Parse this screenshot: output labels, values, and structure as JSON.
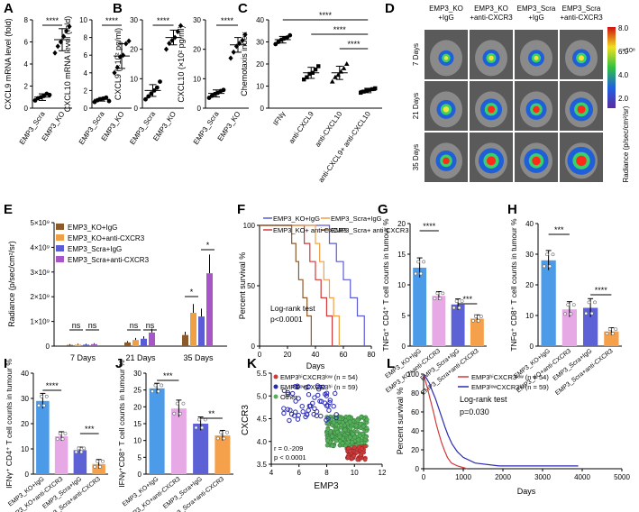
{
  "colors": {
    "blue": "#5B5BD6",
    "orange": "#F0A044",
    "purple": "#A855C8",
    "brown": "#8B5A2B",
    "red": "#D13A3A",
    "blue_bar": "#4B9BE8",
    "pink": "#E7A8E6",
    "indigo": "#5C62D6",
    "orange_bar": "#F5A04B",
    "green": "#55B05A"
  },
  "panel_letters": [
    "A",
    "B",
    "C",
    "D",
    "E",
    "F",
    "G",
    "H",
    "I",
    "J",
    "K",
    "L"
  ],
  "chart_data": [
    {
      "panel": "A",
      "type": "scatter",
      "ylabel": "CXCL9 mRNA level (fold)",
      "categories": [
        "EMP3_Scra",
        "EMP3_KO"
      ],
      "yticks": [
        "0",
        "2",
        "4",
        "6",
        "8"
      ],
      "ylim": [
        0,
        8
      ],
      "means": [
        1.0,
        6.2
      ],
      "sd": [
        0.3,
        1.0
      ],
      "points": [
        [
          0.7,
          0.9,
          1.0,
          1.1,
          1.3,
          1.2
        ],
        [
          5.0,
          5.6,
          6.0,
          6.5,
          7.0,
          7.4
        ]
      ],
      "significance": "****"
    },
    {
      "panel": "A2",
      "type": "scatter",
      "ylabel": "CXCL10 mRNA level (fold)",
      "categories": [
        "EMP3_Scra",
        "EMP3_KO"
      ],
      "yticks": [
        "0",
        "2",
        "4",
        "6",
        "8",
        "10"
      ],
      "ylim": [
        0,
        10
      ],
      "means": [
        1.0,
        5.9
      ],
      "sd": [
        0.2,
        1.4
      ],
      "points": [
        [
          0.7,
          0.9,
          1.0,
          1.1,
          1.2,
          0.8
        ],
        [
          4.0,
          4.6,
          5.8,
          6.0,
          7.3,
          7.6
        ]
      ],
      "significance": "****"
    },
    {
      "panel": "B",
      "type": "scatter",
      "ylabel": "CXCL9 (×10² pg/ml)",
      "categories": [
        "EMP3_Scra",
        "EMP3_KO"
      ],
      "yticks": [
        "0",
        "10",
        "20",
        "30"
      ],
      "ylim": [
        0,
        30
      ],
      "means": [
        6.0,
        24.0
      ],
      "sd": [
        2.0,
        2.5
      ],
      "points": [
        [
          3,
          4,
          5,
          6,
          7,
          9
        ],
        [
          20,
          22,
          23,
          24,
          26,
          28
        ]
      ],
      "significance": "****"
    },
    {
      "panel": "B2",
      "type": "scatter",
      "ylabel": "CXCL10 (×10² pg/ml)",
      "categories": [
        "EMP3_Scra",
        "EMP3_KO"
      ],
      "yticks": [
        "0",
        "10",
        "20",
        "30"
      ],
      "ylim": [
        0,
        30
      ],
      "means": [
        5.0,
        21.5
      ],
      "sd": [
        1.2,
        2.5
      ],
      "points": [
        [
          3.5,
          4.2,
          4.8,
          5.2,
          5.8,
          6.2
        ],
        [
          17,
          19,
          21,
          22,
          23,
          25
        ]
      ],
      "significance": "****"
    },
    {
      "panel": "C",
      "type": "scatter",
      "ylabel": "Chemotaxis index",
      "categories": [
        "IFNγ",
        "anti-CXCL9",
        "anti-CXCL10",
        "anti-CXCL9+ anti-CXCL10"
      ],
      "yticks": [
        "0",
        "10",
        "20",
        "30",
        "40"
      ],
      "ylim": [
        0,
        40
      ],
      "means": [
        31,
        16,
        16,
        8
      ],
      "sd": [
        1.5,
        2.5,
        3.0,
        1.0
      ],
      "points": [
        [
          29,
          30,
          31,
          31.5,
          32,
          33
        ],
        [
          13,
          14,
          15.5,
          16,
          17.5,
          19
        ],
        [
          12,
          14,
          15,
          16.5,
          18,
          20
        ],
        [
          7,
          7.5,
          8,
          8.3,
          8.6,
          9
        ]
      ],
      "significance": [
        "****",
        "****",
        "****"
      ]
    },
    {
      "panel": "D",
      "type": "heatmap",
      "rows": [
        "7 Days",
        "21 Days",
        "35 Days"
      ],
      "columns": [
        "EMP3_KO +IgG",
        "EMP3_KO +anti-CXCR3",
        "EMP3_Scra +IgG",
        "EMP3_Scra +anti-CXCR3"
      ],
      "colorbar_ticks": [
        "8.0",
        "6.0",
        "4.0",
        "2.0"
      ],
      "colorbar_unit": "×10⁸",
      "colorbar_label": "Radiance (p/sec/cm²/sr)",
      "intensity": [
        [
          0.25,
          0.35,
          0.3,
          0.4
        ],
        [
          0.45,
          0.6,
          0.55,
          0.7
        ],
        [
          0.55,
          0.8,
          0.75,
          0.95
        ]
      ]
    },
    {
      "panel": "E",
      "type": "bar",
      "ylabel": "Radiance (p/sec/cm²/sr)",
      "categories": [
        "7 Days",
        "21 Days",
        "35 Days"
      ],
      "yticks": [
        "0",
        "1×10⁹",
        "2×10⁹",
        "3×10⁹",
        "4×10⁹",
        "5×10⁹"
      ],
      "ylim": [
        0,
        5
      ],
      "series": [
        {
          "name": "EMP3_KO+IgG",
          "values": [
            0.05,
            0.15,
            0.45
          ]
        },
        {
          "name": "EMP3_KO+anti-CXCR3",
          "values": [
            0.06,
            0.25,
            1.35
          ]
        },
        {
          "name": "EMP3_Scra+IgG",
          "values": [
            0.06,
            0.3,
            1.2
          ]
        },
        {
          "name": "EMP3_Scra+anti-CXCR3",
          "values": [
            0.08,
            0.55,
            2.95
          ]
        }
      ],
      "significance": [
        "ns",
        "ns",
        "ns",
        "ns",
        "*",
        "*"
      ]
    },
    {
      "panel": "F",
      "type": "line",
      "ylabel": "Percent survival %",
      "xlabel": "Days",
      "xlim": [
        0,
        80
      ],
      "ylim": [
        0,
        100
      ],
      "xticks": [
        "0",
        "20",
        "40",
        "60",
        "80"
      ],
      "yticks": [
        "0",
        "50",
        "100"
      ],
      "series": [
        {
          "name": "EMP3_KO+IgG",
          "points": [
            [
              0,
              100
            ],
            [
              50,
              100
            ],
            [
              50,
              85
            ],
            [
              55,
              85
            ],
            [
              55,
              70
            ],
            [
              60,
              70
            ],
            [
              60,
              55
            ],
            [
              65,
              55
            ],
            [
              65,
              40
            ],
            [
              70,
              40
            ],
            [
              70,
              25
            ],
            [
              75,
              25
            ],
            [
              75,
              0
            ]
          ]
        },
        {
          "name": "EMP3_KO+ anti-CXCR3",
          "points": [
            [
              0,
              100
            ],
            [
              32,
              100
            ],
            [
              32,
              85
            ],
            [
              36,
              85
            ],
            [
              36,
              70
            ],
            [
              40,
              70
            ],
            [
              40,
              55
            ],
            [
              44,
              55
            ],
            [
              44,
              40
            ],
            [
              48,
              40
            ],
            [
              48,
              25
            ],
            [
              52,
              25
            ],
            [
              52,
              0
            ]
          ]
        },
        {
          "name": "EMP3_Scra+IgG",
          "points": [
            [
              0,
              100
            ],
            [
              40,
              100
            ],
            [
              40,
              85
            ],
            [
              43,
              85
            ],
            [
              43,
              70
            ],
            [
              46,
              70
            ],
            [
              46,
              55
            ],
            [
              50,
              55
            ],
            [
              50,
              40
            ],
            [
              53,
              40
            ],
            [
              53,
              25
            ],
            [
              57,
              25
            ],
            [
              57,
              0
            ]
          ]
        },
        {
          "name": "EMP3_Scra+ anti-CXCR3",
          "points": [
            [
              0,
              100
            ],
            [
              23,
              100
            ],
            [
              23,
              85
            ],
            [
              26,
              85
            ],
            [
              26,
              70
            ],
            [
              28,
              70
            ],
            [
              28,
              55
            ],
            [
              31,
              55
            ],
            [
              31,
              40
            ],
            [
              34,
              40
            ],
            [
              34,
              25
            ],
            [
              37,
              25
            ],
            [
              37,
              0
            ]
          ]
        }
      ],
      "annotation": [
        "Log-rank test",
        "p<0.0001"
      ]
    },
    {
      "panel": "G",
      "type": "bar",
      "ylabel": "TNFα⁺ CD4⁺ T cell counts in tumour %",
      "categories": [
        "EMP3_KO+IgG",
        "EMP3_KO+anti-CXCR3",
        "EMP3_Scra+IgG",
        "EMP3_Scra+anti-CXCR3"
      ],
      "yticks": [
        "0",
        "5",
        "10",
        "15",
        "20"
      ],
      "ylim": [
        0,
        20
      ],
      "values": [
        12.8,
        8.2,
        6.8,
        4.5
      ],
      "sd": [
        1.6,
        0.7,
        0.9,
        0.6
      ],
      "significance": [
        "****",
        "***"
      ]
    },
    {
      "panel": "H",
      "type": "bar",
      "ylabel": "TNFα⁺ CD8⁺ T cell counts in tumour %",
      "categories": [
        "EMP3_KO+IgG",
        "EMP3_KO+anti-CXCR3",
        "EMP3_Scra+IgG",
        "EMP3_Scra+anti-CXCR3"
      ],
      "yticks": [
        "0",
        "10",
        "20",
        "30",
        "40"
      ],
      "ylim": [
        0,
        40
      ],
      "values": [
        28.0,
        12.0,
        12.5,
        4.8
      ],
      "sd": [
        3.2,
        2.5,
        3.0,
        1.2
      ],
      "significance": [
        "***",
        "****"
      ]
    },
    {
      "panel": "I",
      "type": "bar",
      "ylabel": "IFNγ⁺ CD4⁺ T cell counts in tumour %",
      "categories": [
        "EMP3_KO+IgG",
        "EMP3_KO+anti-CXCR3",
        "EMP3_Scra+IgG",
        "EMP3_Scra+anti-CXCR3"
      ],
      "yticks": [
        "0",
        "10",
        "20",
        "30",
        "40"
      ],
      "ylim": [
        0,
        40
      ],
      "values": [
        29.0,
        15.0,
        9.5,
        4.0
      ],
      "sd": [
        3.0,
        1.8,
        1.2,
        1.8
      ],
      "significance": [
        "****",
        "***"
      ]
    },
    {
      "panel": "J",
      "type": "bar",
      "ylabel": "IFNγ⁺CD8⁺ T cell counts in tumour %",
      "categories": [
        "EMP3_KO+IgG",
        "EMP3_KO+anti-CXCR3",
        "EMP3_Scra+IgG",
        "EMP3_Scra+anti-CXCR3"
      ],
      "yticks": [
        "0",
        "5",
        "10",
        "15",
        "20",
        "25",
        "30"
      ],
      "ylim": [
        0,
        30
      ],
      "values": [
        25.5,
        19.5,
        15.0,
        11.5
      ],
      "sd": [
        1.5,
        2.5,
        2.0,
        1.5
      ],
      "significance": [
        "***",
        "**"
      ]
    },
    {
      "panel": "K",
      "type": "scatter",
      "xlabel": "EMP3",
      "ylabel": "CXCR3",
      "xlim": [
        4,
        12
      ],
      "ylim": [
        3.5,
        5.5
      ],
      "xticks": [
        "4",
        "6",
        "8",
        "10",
        "12"
      ],
      "yticks": [
        "3.5",
        "4.0",
        "4.5",
        "5.0",
        "5.5"
      ],
      "legend": [
        "EMP3ʰⁱCXCR3ˡᵒʷ (n = 54)",
        "EMP3ˡᵒʷCXCR3ʰⁱ (n = 59)",
        "Other"
      ],
      "annotation": [
        "r = 0.-209",
        "p < 0.0001"
      ]
    },
    {
      "panel": "L",
      "type": "line",
      "ylabel": "Percent survival %",
      "xlabel": "Days",
      "xlim": [
        0,
        5000
      ],
      "ylim": [
        0,
        100
      ],
      "xticks": [
        "0",
        "1000",
        "2000",
        "3000",
        "4000",
        "5000"
      ],
      "yticks": [
        "0",
        "20",
        "40",
        "60",
        "80",
        "100"
      ],
      "series": [
        {
          "name": "EMP3ʰⁱCXCR3ˡᵒʷ (n = 54)",
          "points": [
            [
              0,
              100
            ],
            [
              50,
              92
            ],
            [
              100,
              85
            ],
            [
              150,
              76
            ],
            [
              200,
              68
            ],
            [
              260,
              58
            ],
            [
              320,
              47
            ],
            [
              380,
              38
            ],
            [
              450,
              28
            ],
            [
              520,
              20
            ],
            [
              600,
              12
            ],
            [
              700,
              6
            ],
            [
              850,
              3
            ],
            [
              1100,
              0
            ]
          ]
        },
        {
          "name": "EMP3ˡᵒʷCXCR3ʰⁱ (n = 59)",
          "points": [
            [
              0,
              100
            ],
            [
              80,
              95
            ],
            [
              150,
              90
            ],
            [
              220,
              82
            ],
            [
              300,
              74
            ],
            [
              380,
              64
            ],
            [
              460,
              54
            ],
            [
              540,
              44
            ],
            [
              620,
              35
            ],
            [
              720,
              26
            ],
            [
              850,
              18
            ],
            [
              1000,
              12
            ],
            [
              1300,
              6
            ],
            [
              1900,
              3
            ],
            [
              3900,
              3
            ]
          ]
        }
      ],
      "annotation": [
        "Log-rank test",
        "p=0.030"
      ]
    }
  ]
}
